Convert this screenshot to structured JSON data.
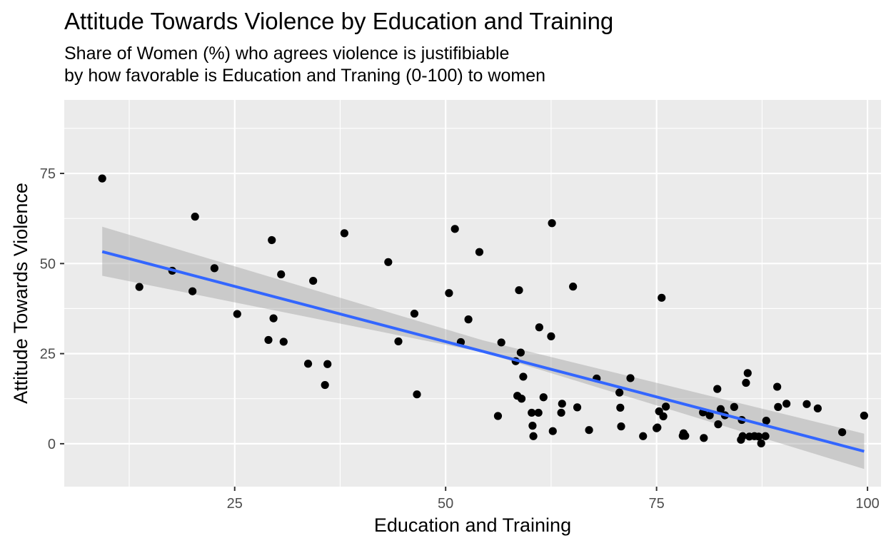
{
  "chart_data": {
    "type": "scatter",
    "title": "Attitude Towards Violence by Education and Training",
    "subtitle_lines": [
      "Share of Women (%) who agrees violence is justifibiable",
      "by how favorable is Education and Traning (0-100) to women"
    ],
    "xlabel": "Education and Training",
    "ylabel": "Attitude Towards Violence",
    "xlim": [
      4.8,
      101.6
    ],
    "ylim": [
      -11.9,
      95.4
    ],
    "x_ticks": [
      25,
      50,
      75,
      100
    ],
    "y_ticks": [
      0,
      25,
      50,
      75
    ],
    "x_minor": [
      12.5,
      37.5,
      62.5,
      87.5
    ],
    "y_minor": [
      12.5,
      37.5,
      62.5,
      87.5
    ],
    "grid": true,
    "legend": "none",
    "colors": {
      "panel": "#ebebeb",
      "grid": "#ffffff",
      "points": "#000000",
      "trend": "#3366ff",
      "ribbon": "#999999",
      "tick_text": "#4d4d4d"
    },
    "series": [
      {
        "kind": "points",
        "x": [
          9.3,
          13.7,
          17.6,
          20.0,
          20.3,
          22.6,
          25.3,
          29.0,
          29.4,
          29.6,
          30.5,
          30.8,
          33.7,
          34.3,
          35.7,
          36.0,
          38.0,
          43.2,
          44.4,
          46.3,
          46.6,
          50.4,
          51.1,
          51.8,
          52.7,
          54.0,
          56.2,
          56.6,
          58.3,
          58.5,
          58.7,
          58.9,
          59.0,
          59.2,
          60.2,
          60.3,
          60.4,
          61.0,
          61.1,
          61.6,
          62.5,
          62.6,
          62.7,
          63.7,
          63.8,
          65.1,
          65.6,
          67.0,
          67.9,
          70.6,
          70.7,
          70.8,
          71.9,
          73.4,
          75.0,
          75.1,
          75.3,
          75.6,
          75.8,
          76.1,
          78.1,
          78.2,
          78.4,
          80.5,
          80.6,
          81.3,
          82.2,
          82.3,
          82.6,
          83.1,
          84.2,
          85.0,
          85.1,
          85.2,
          85.6,
          85.8,
          86.0,
          86.6,
          87.1,
          87.4,
          87.9,
          88.0,
          89.3,
          89.4,
          90.4,
          92.8,
          94.1,
          97.0,
          99.6
        ],
        "y": [
          73.6,
          43.5,
          48.0,
          42.3,
          63.0,
          48.7,
          36.0,
          28.8,
          56.5,
          34.8,
          47.0,
          28.3,
          22.2,
          45.2,
          16.3,
          22.1,
          58.4,
          50.4,
          28.4,
          36.1,
          13.7,
          41.8,
          59.6,
          28.2,
          34.5,
          53.2,
          7.7,
          28.1,
          22.9,
          13.3,
          42.6,
          25.3,
          12.5,
          18.6,
          8.6,
          5.0,
          2.1,
          8.6,
          32.3,
          12.9,
          29.8,
          61.2,
          3.5,
          8.6,
          11.1,
          43.6,
          10.1,
          3.8,
          18.1,
          14.2,
          10.0,
          4.8,
          18.2,
          2.1,
          4.3,
          4.5,
          9.0,
          40.5,
          7.6,
          10.3,
          2.2,
          2.9,
          2.2,
          8.7,
          1.6,
          7.9,
          15.2,
          5.4,
          9.6,
          7.9,
          10.2,
          1.1,
          6.6,
          2.1,
          16.9,
          19.6,
          2.0,
          2.1,
          2.0,
          0.1,
          2.1,
          6.4,
          15.8,
          10.2,
          11.1,
          11.0,
          9.8,
          3.2,
          7.8
        ]
      },
      {
        "kind": "linear-fit",
        "x": [
          9.3,
          99.6
        ],
        "y": [
          53.3,
          -2.1
        ]
      },
      {
        "kind": "confidence-band",
        "x": [
          9.3,
          54.4,
          99.6
        ],
        "lower": [
          46.6,
          25.4,
          -7.0
        ],
        "upper": [
          60.2,
          28.7,
          2.8
        ]
      }
    ]
  }
}
